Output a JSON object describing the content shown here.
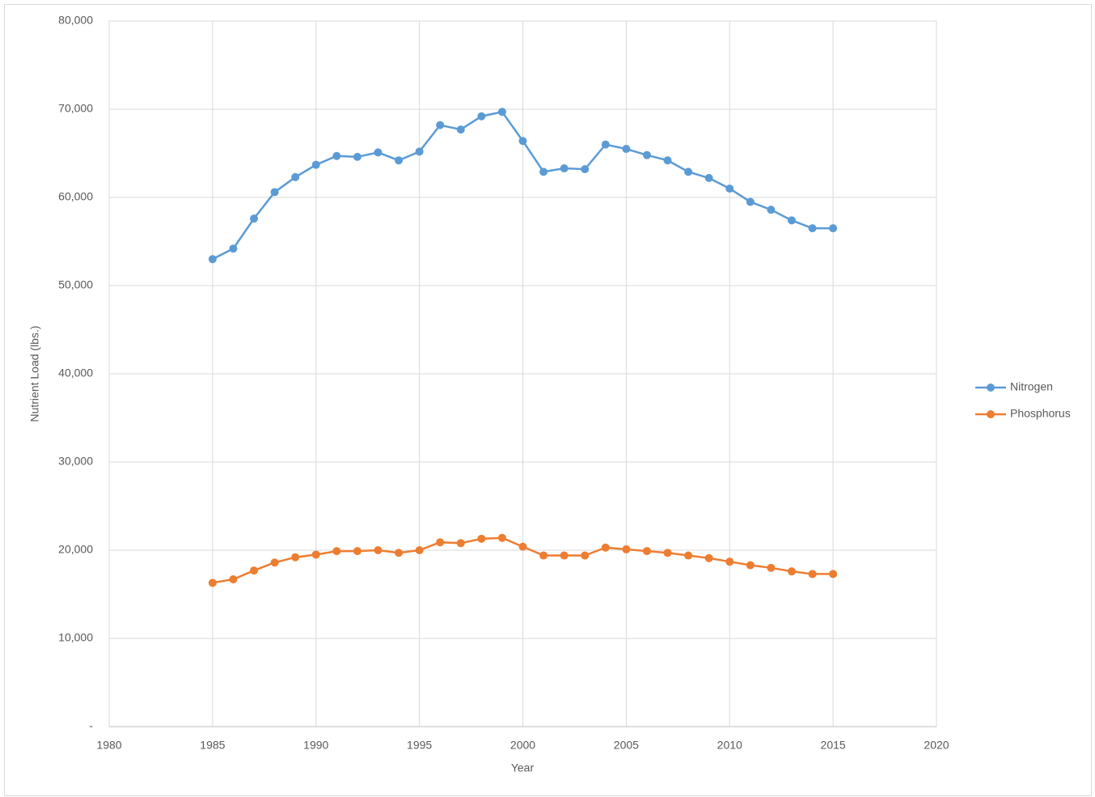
{
  "chart_data": {
    "type": "line",
    "x_label": "Year",
    "y_label": "Nutrient Load (lbs.)",
    "x": [
      1985,
      1986,
      1987,
      1988,
      1989,
      1990,
      1991,
      1992,
      1993,
      1994,
      1995,
      1996,
      1997,
      1998,
      1999,
      2000,
      2001,
      2002,
      2003,
      2004,
      2005,
      2006,
      2007,
      2008,
      2009,
      2010,
      2011,
      2012,
      2013,
      2014,
      2015
    ],
    "series": [
      {
        "name": "Nitrogen",
        "color": "#5b9bd5",
        "values": [
          53000,
          54200,
          57600,
          60600,
          62300,
          63700,
          64700,
          64600,
          65100,
          64200,
          65200,
          68200,
          67700,
          69200,
          69700,
          66400,
          62900,
          63300,
          63200,
          66000,
          65500,
          64800,
          64200,
          62900,
          62200,
          61000,
          59500,
          58600,
          57400,
          56500,
          56500
        ]
      },
      {
        "name": "Phosphorus",
        "color": "#ed7d31",
        "values": [
          16300,
          16700,
          17700,
          18600,
          19200,
          19500,
          19900,
          19900,
          20000,
          19700,
          20000,
          20900,
          20800,
          21300,
          21400,
          20400,
          19400,
          19400,
          19400,
          20300,
          20100,
          19900,
          19700,
          19400,
          19100,
          18700,
          18300,
          18000,
          17600,
          17300,
          17300
        ]
      }
    ],
    "xlim": [
      1980,
      2020
    ],
    "xticks": [
      1980,
      1985,
      1990,
      1995,
      2000,
      2005,
      2010,
      2015,
      2020
    ],
    "ylim": [
      0,
      80000
    ],
    "yticks": [
      {
        "value": 0,
        "label": "-"
      },
      {
        "value": 10000,
        "label": "10,000"
      },
      {
        "value": 20000,
        "label": "20,000"
      },
      {
        "value": 30000,
        "label": "30,000"
      },
      {
        "value": 40000,
        "label": "40,000"
      },
      {
        "value": 50000,
        "label": "50,000"
      },
      {
        "value": 60000,
        "label": "60,000"
      },
      {
        "value": 70000,
        "label": "70,000"
      },
      {
        "value": 80000,
        "label": "80,000"
      }
    ],
    "grid": true,
    "legend": "right"
  }
}
